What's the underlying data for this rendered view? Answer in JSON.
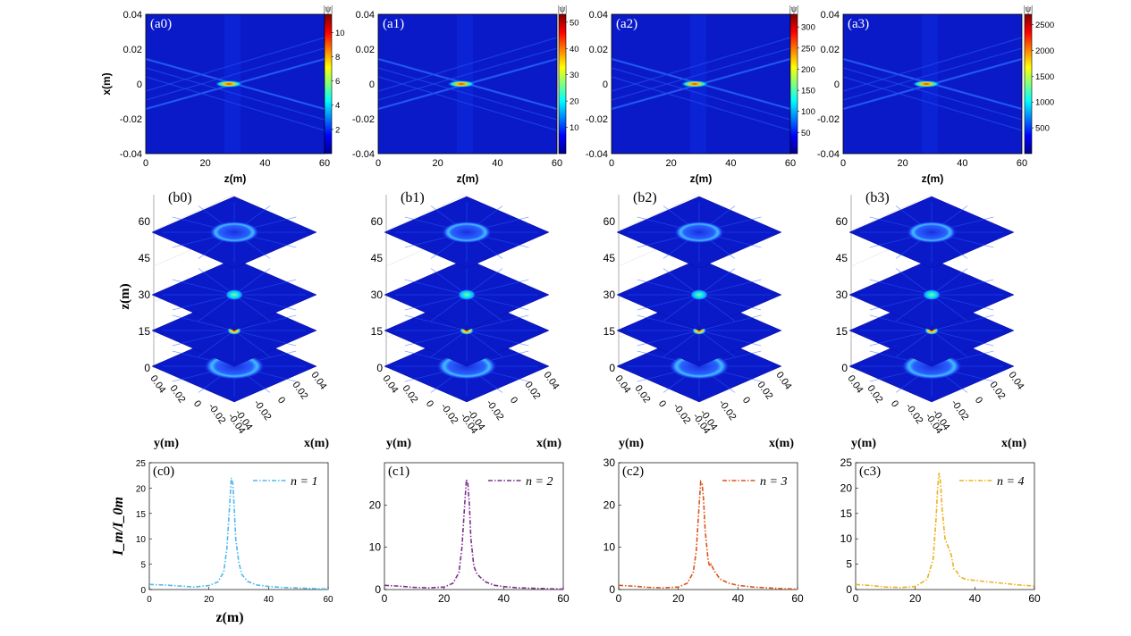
{
  "colors": {
    "jet": [
      "#00008f",
      "#0000ff",
      "#00ffff",
      "#ffff00",
      "#ff0000",
      "#800000"
    ],
    "curves": [
      "#4fb8ec",
      "#7e2f8e",
      "#d9541a",
      "#edb120"
    ],
    "background_field": "#0a1ac8"
  },
  "panels_a": [
    {
      "label": "(a0)",
      "colorbar_label": "|ψ|",
      "cbar_ticks": [
        "10",
        "8",
        "6",
        "4",
        "2"
      ],
      "cbar_values": [
        10,
        8,
        6,
        4,
        2
      ],
      "cbar_max": 11.5
    },
    {
      "label": "(a1)",
      "colorbar_label": "|ψ|",
      "cbar_ticks": [
        "50",
        "40",
        "30",
        "20",
        "10"
      ],
      "cbar_values": [
        50,
        40,
        30,
        20,
        10
      ],
      "cbar_max": 53
    },
    {
      "label": "(a2)",
      "colorbar_label": "|ψ|",
      "cbar_ticks": [
        "300",
        "250",
        "200",
        "150",
        "100",
        "50"
      ],
      "cbar_values": [
        300,
        250,
        200,
        150,
        100,
        50
      ],
      "cbar_max": 330
    },
    {
      "label": "(a3)",
      "colorbar_label": "|ψ|",
      "cbar_ticks": [
        "2500",
        "2000",
        "1500",
        "1000",
        "500"
      ],
      "cbar_values": [
        2500,
        2000,
        1500,
        1000,
        500
      ],
      "cbar_max": 2700
    }
  ],
  "a_axes": {
    "x_ticks": [
      "0",
      "20",
      "40",
      "60"
    ],
    "y_ticks": [
      "0.04",
      "0.02",
      "0",
      "-0.02",
      "-0.04"
    ],
    "xlabel": "z(m)",
    "ylabel": "x(m)"
  },
  "panels_b": [
    {
      "label": "(b0)"
    },
    {
      "label": "(b1)"
    },
    {
      "label": "(b2)"
    },
    {
      "label": "(b3)"
    }
  ],
  "b_axes": {
    "z_ticks": [
      "60",
      "45",
      "30",
      "15",
      "0"
    ],
    "zlabel": "z(m)",
    "y_ticks": [
      "0.04",
      "0.02",
      "0",
      "-0.02",
      "-0.04"
    ],
    "x_ticks": [
      "0.04",
      "0.02",
      "0",
      "-0.02",
      "-0.04"
    ],
    "ylabel": "y(m)",
    "xlabel": "x(m)"
  },
  "chart_data": [
    {
      "type": "line",
      "label": "(c0)",
      "legend": "n = 1",
      "xlabel": "z(m)",
      "ylabel": "I_m/I_0m",
      "xlim": [
        0,
        60
      ],
      "ylim": [
        0,
        25
      ],
      "yticks": [
        "25",
        "20",
        "15",
        "10",
        "5",
        "0"
      ],
      "xticks": [
        "0",
        "20",
        "40",
        "60"
      ],
      "x": [
        0,
        5,
        10,
        15,
        20,
        23,
        25,
        26,
        27,
        27.5,
        28,
        28.5,
        29,
        30,
        31,
        33,
        36,
        40,
        45,
        50,
        55,
        60
      ],
      "y": [
        1.0,
        0.9,
        0.7,
        0.5,
        0.8,
        1.5,
        3.5,
        8,
        17,
        22,
        21,
        16,
        10,
        5.5,
        3.0,
        1.6,
        0.9,
        0.6,
        0.4,
        0.3,
        0.2,
        0.1
      ]
    },
    {
      "type": "line",
      "label": "(c1)",
      "legend": "n = 2",
      "xlabel": "",
      "ylabel": "",
      "xlim": [
        0,
        60
      ],
      "ylim": [
        0,
        30
      ],
      "yticks": [
        "20",
        "10",
        "0"
      ],
      "xticks": [
        "0",
        "20",
        "40",
        "60"
      ],
      "x": [
        0,
        5,
        10,
        15,
        20,
        23,
        25,
        26,
        27,
        27.5,
        28,
        28.5,
        29,
        30,
        31,
        32,
        34,
        37,
        40,
        45,
        50,
        55,
        60
      ],
      "y": [
        1.0,
        0.8,
        0.5,
        0.4,
        0.6,
        1.5,
        4,
        10,
        21,
        26,
        25,
        20,
        12,
        5.5,
        3.8,
        3.0,
        1.8,
        1.0,
        0.7,
        0.4,
        0.3,
        0.2,
        0.1
      ]
    },
    {
      "type": "line",
      "label": "(c2)",
      "legend": "n = 3",
      "xlabel": "",
      "ylabel": "",
      "xlim": [
        0,
        60
      ],
      "ylim": [
        0,
        30
      ],
      "yticks": [
        "30",
        "20",
        "10",
        "0"
      ],
      "xticks": [
        "0",
        "20",
        "40",
        "60"
      ],
      "x": [
        0,
        5,
        10,
        15,
        20,
        23,
        25,
        26,
        27,
        27.5,
        28,
        28.5,
        29,
        30,
        30.5,
        31,
        32,
        34,
        37,
        40,
        45,
        50,
        55,
        60
      ],
      "y": [
        1.0,
        0.8,
        0.5,
        0.4,
        0.6,
        1.5,
        4,
        9,
        20,
        25.5,
        25,
        21,
        14,
        7,
        5.5,
        6,
        4.5,
        2.5,
        1.5,
        1.0,
        0.6,
        0.4,
        0.2,
        0.1
      ]
    },
    {
      "type": "line",
      "label": "(c3)",
      "legend": "n = 4",
      "xlabel": "",
      "ylabel": "",
      "xlim": [
        0,
        60
      ],
      "ylim": [
        0,
        25
      ],
      "yticks": [
        "25",
        "20",
        "15",
        "10",
        "5",
        "0"
      ],
      "xticks": [
        "0",
        "20",
        "40",
        "60"
      ],
      "x": [
        0,
        5,
        10,
        15,
        20,
        24,
        26,
        27,
        27.5,
        28,
        28.5,
        29,
        30,
        31,
        32,
        33,
        34,
        35,
        37,
        40,
        45,
        50,
        55,
        60
      ],
      "y": [
        1.0,
        0.8,
        0.5,
        0.4,
        0.6,
        2,
        6,
        14,
        20,
        23,
        21,
        16,
        10,
        8.5,
        7,
        4,
        3.5,
        2.5,
        2.0,
        1.8,
        1.5,
        1.2,
        0.9,
        0.7
      ]
    }
  ]
}
